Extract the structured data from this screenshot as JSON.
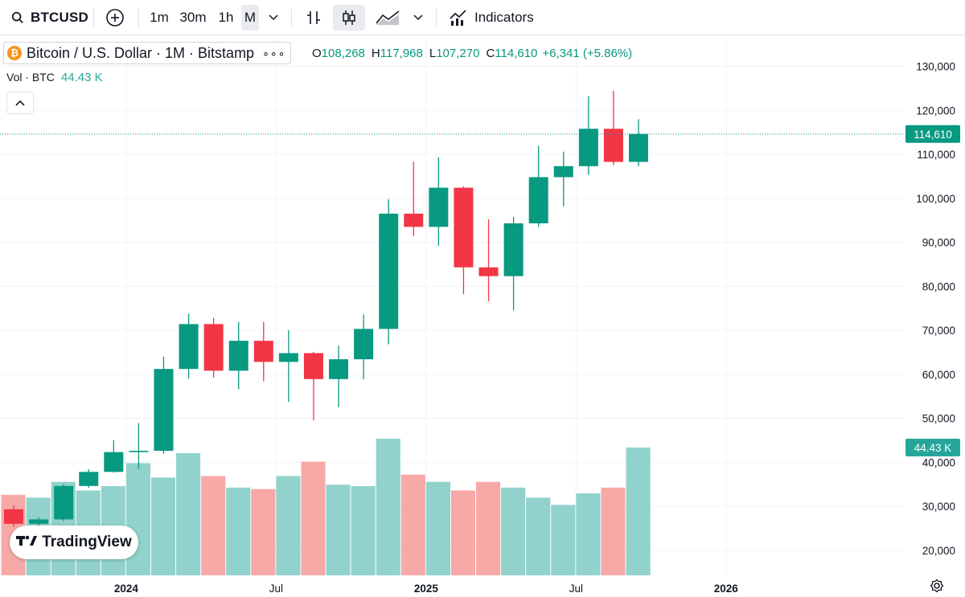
{
  "toolbar": {
    "symbol": "BTCUSD",
    "intervals": [
      "1m",
      "30m",
      "1h",
      "M"
    ],
    "active_interval": "M",
    "indicators_label": "Indicators"
  },
  "legend": {
    "title": "Bitcoin / U.S. Dollar · 1M · Bitstamp",
    "more": "∘∘∘",
    "open_label": "O",
    "open": "108,268",
    "high_label": "H",
    "high": "117,968",
    "low_label": "L",
    "low": "107,270",
    "close_label": "C",
    "close": "114,610",
    "change": "+6,341 (+5.86%)",
    "vol_label": "Vol · BTC",
    "vol_value": "44.43 K"
  },
  "branding": {
    "logo_text": "TradingView"
  },
  "colors": {
    "up": "#089981",
    "down": "#f23645",
    "vol_up": "#92d2cc",
    "vol_down": "#f7a9a7"
  },
  "chart_data": {
    "type": "candlestick",
    "interval": "1M",
    "price_axis": {
      "ticks": [
        20000,
        30000,
        40000,
        50000,
        60000,
        70000,
        80000,
        90000,
        100000,
        110000,
        120000,
        130000
      ],
      "tick_labels": [
        "20,000",
        "30,000",
        "40,000",
        "50,000",
        "60,000",
        "70,000",
        "80,000",
        "90,000",
        "100,000",
        "110,000",
        "120,000",
        "130,000"
      ],
      "last_price_label": "114,610",
      "volume_label": "44.43 K"
    },
    "time_axis": {
      "labels": [
        "2024",
        "Jul",
        "2025",
        "Jul",
        "2026"
      ],
      "label_months": [
        "2024-01",
        "2024-07",
        "2025-01",
        "2025-07",
        "2026-01"
      ]
    },
    "months": [
      "2023-08",
      "2023-09",
      "2023-10",
      "2023-11",
      "2023-12",
      "2024-01",
      "2024-02",
      "2024-03",
      "2024-04",
      "2024-05",
      "2024-06",
      "2024-07",
      "2024-08",
      "2024-09",
      "2024-10",
      "2024-11",
      "2024-12",
      "2025-01",
      "2025-02",
      "2025-03",
      "2025-04",
      "2025-05",
      "2025-06",
      "2025-07",
      "2025-08",
      "2025-09"
    ],
    "open": [
      29300,
      26000,
      27000,
      34600,
      37800,
      42300,
      42600,
      61200,
      71400,
      60800,
      67600,
      62800,
      64800,
      58900,
      63400,
      70300,
      96500,
      93500,
      102400,
      84300,
      82300,
      94300,
      104800,
      107300,
      115800,
      108268
    ],
    "high": [
      30200,
      27500,
      35000,
      38400,
      45000,
      48900,
      64000,
      73800,
      72800,
      71900,
      71900,
      70000,
      65100,
      66500,
      73600,
      99800,
      108300,
      109300,
      102700,
      95200,
      95800,
      111900,
      110600,
      123200,
      124400,
      117968
    ],
    "low": [
      25300,
      24900,
      26600,
      34200,
      37600,
      38500,
      41900,
      59000,
      59200,
      56600,
      58400,
      53700,
      49500,
      52500,
      58900,
      66800,
      91400,
      89200,
      78200,
      76600,
      74500,
      93500,
      98200,
      105300,
      107500,
      107270
    ],
    "close": [
      26000,
      27000,
      34600,
      37800,
      42300,
      42600,
      61200,
      71400,
      60800,
      67600,
      62800,
      64800,
      58900,
      63400,
      70300,
      96500,
      93500,
      102400,
      84300,
      82300,
      94300,
      104800,
      107300,
      115800,
      108268,
      114610
    ],
    "volume_btc": [
      28000,
      27000,
      32500,
      29500,
      31000,
      39000,
      34000,
      42500,
      34500,
      30500,
      30000,
      34500,
      39500,
      31500,
      31000,
      47500,
      35000,
      32500,
      29500,
      32500,
      30500,
      27000,
      24500,
      28500,
      30500,
      44430
    ],
    "current_price": 114610
  }
}
